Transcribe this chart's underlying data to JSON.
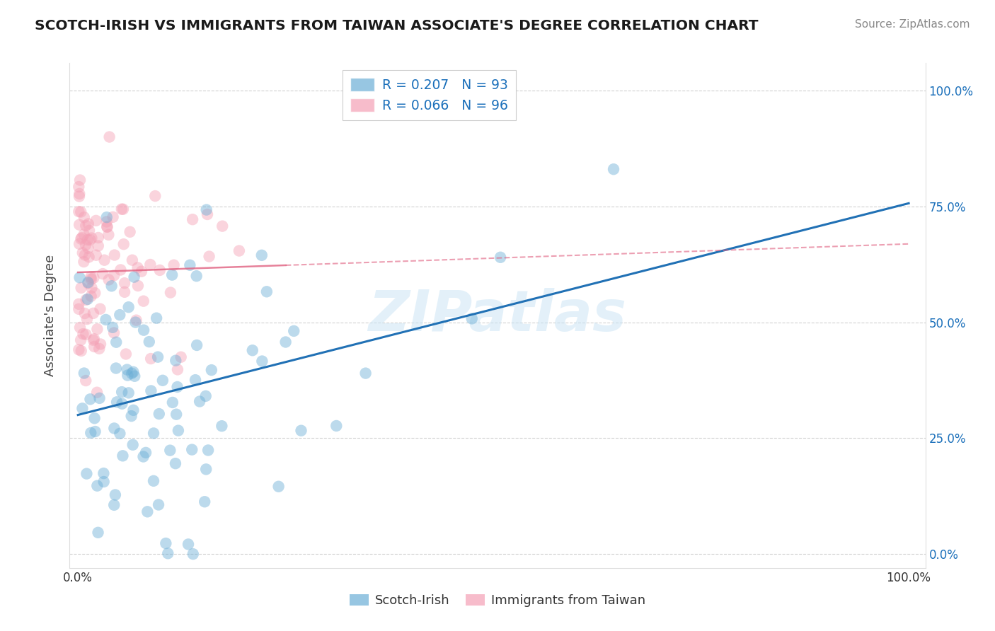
{
  "title": "SCOTCH-IRISH VS IMMIGRANTS FROM TAIWAN ASSOCIATE'S DEGREE CORRELATION CHART",
  "source_text": "Source: ZipAtlas.com",
  "ylabel": "Associate's Degree",
  "blue_R": 0.207,
  "blue_N": 93,
  "pink_R": 0.066,
  "pink_N": 96,
  "blue_label": "Scotch-Irish",
  "pink_label": "Immigrants from Taiwan",
  "blue_color": "#6baed6",
  "pink_color": "#f4a0b5",
  "blue_line_color": "#2171b5",
  "pink_line_color": "#e06080",
  "legend_R_color": "#1a6fba",
  "watermark_text": "ZIPatlas",
  "background_color": "#ffffff",
  "grid_color": "#cccccc"
}
